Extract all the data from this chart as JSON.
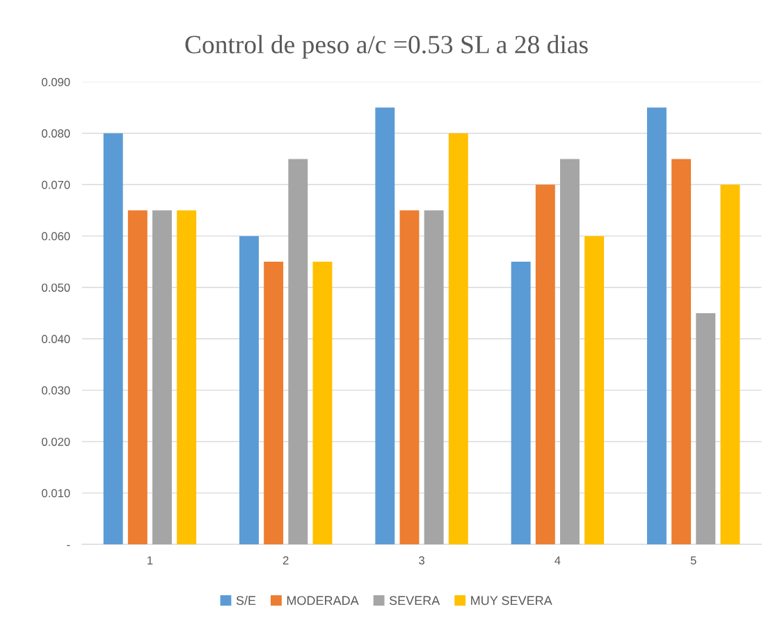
{
  "chart_data": {
    "type": "bar",
    "title": "Control de peso a/c =0.53 SL a 28 dias",
    "categories": [
      "1",
      "2",
      "3",
      "4",
      "5"
    ],
    "series": [
      {
        "name": "S/E",
        "color": "#5b9bd5",
        "values": [
          0.08,
          0.06,
          0.085,
          0.055,
          0.085
        ]
      },
      {
        "name": "MODERADA",
        "color": "#ed7d31",
        "values": [
          0.065,
          0.055,
          0.065,
          0.07,
          0.075
        ]
      },
      {
        "name": "SEVERA",
        "color": "#a5a5a5",
        "values": [
          0.065,
          0.075,
          0.065,
          0.075,
          0.045
        ]
      },
      {
        "name": "MUY SEVERA",
        "color": "#ffc000",
        "values": [
          0.065,
          0.055,
          0.08,
          0.06,
          0.07
        ]
      }
    ],
    "ylim": [
      0,
      0.09
    ],
    "yticks": [
      {
        "value": 0,
        "label": "-"
      },
      {
        "value": 0.01,
        "label": "0.010"
      },
      {
        "value": 0.02,
        "label": "0.020"
      },
      {
        "value": 0.03,
        "label": "0.030"
      },
      {
        "value": 0.04,
        "label": "0.040"
      },
      {
        "value": 0.05,
        "label": "0.050"
      },
      {
        "value": 0.06,
        "label": "0.060"
      },
      {
        "value": 0.07,
        "label": "0.070"
      },
      {
        "value": 0.08,
        "label": "0.080"
      },
      {
        "value": 0.09,
        "label": "0.090"
      }
    ],
    "grid": "y",
    "legend": "bottom"
  }
}
